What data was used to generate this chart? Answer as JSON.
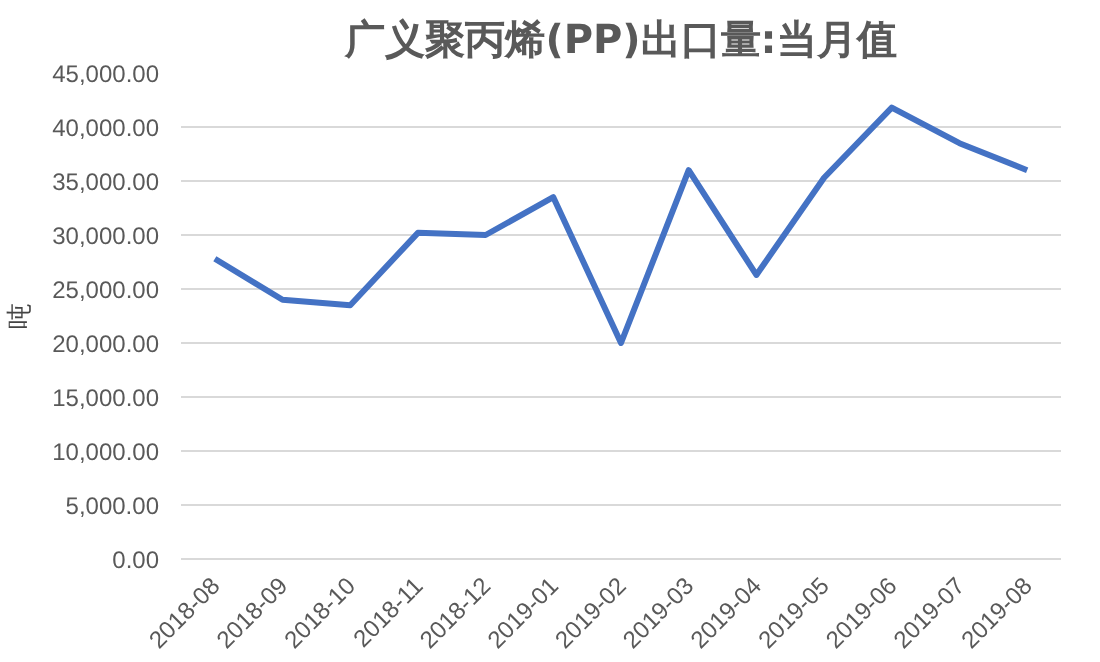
{
  "chart_data": {
    "type": "line",
    "title": "广义聚丙烯(PP)出口量:当月值",
    "ylabel": "吨",
    "categories": [
      "2018-08",
      "2018-09",
      "2018-10",
      "2018-11",
      "2018-12",
      "2019-01",
      "2019-02",
      "2019-03",
      "2019-04",
      "2019-05",
      "2019-06",
      "2019-07",
      "2019-08"
    ],
    "series": [
      {
        "color": "#4472c4",
        "values": [
          27800,
          24000,
          23500,
          30200,
          30000,
          33500,
          20000,
          36000,
          26300,
          35300,
          41800,
          38500,
          36000
        ]
      }
    ],
    "ylim": [
      0,
      45000
    ],
    "yticks": [
      {
        "value": 0,
        "label": "0.00"
      },
      {
        "value": 5000,
        "label": "5,000.00"
      },
      {
        "value": 10000,
        "label": "10,000.00"
      },
      {
        "value": 15000,
        "label": "15,000.00"
      },
      {
        "value": 20000,
        "label": "20,000.00"
      },
      {
        "value": 25000,
        "label": "25,000.00"
      },
      {
        "value": 30000,
        "label": "30,000.00"
      },
      {
        "value": 35000,
        "label": "35,000.00"
      },
      {
        "value": 40000,
        "label": "40,000.00"
      },
      {
        "value": 45000,
        "label": "45,000.00"
      }
    ],
    "grid": "y",
    "marker": "none",
    "line_style": "solid"
  }
}
